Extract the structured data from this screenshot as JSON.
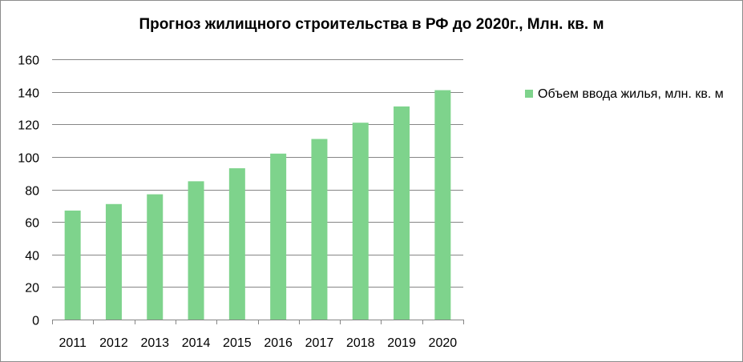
{
  "chart_data": {
    "type": "bar",
    "title": "Прогноз жилищного строительства в РФ до 2020г., Млн. кв. м",
    "categories": [
      "2011",
      "2012",
      "2013",
      "2014",
      "2015",
      "2016",
      "2017",
      "2018",
      "2019",
      "2020"
    ],
    "series": [
      {
        "name": "Объем ввода жилья, млн. кв. м",
        "values": [
          67,
          71,
          77,
          85,
          93,
          102,
          111,
          121,
          131,
          141
        ],
        "color": "#7ed38c"
      }
    ],
    "ylim": [
      0,
      160
    ],
    "yticks": [
      0,
      20,
      40,
      60,
      80,
      100,
      120,
      140,
      160
    ],
    "grid": true,
    "legend_position": "right",
    "gridline_color": "#868686"
  }
}
